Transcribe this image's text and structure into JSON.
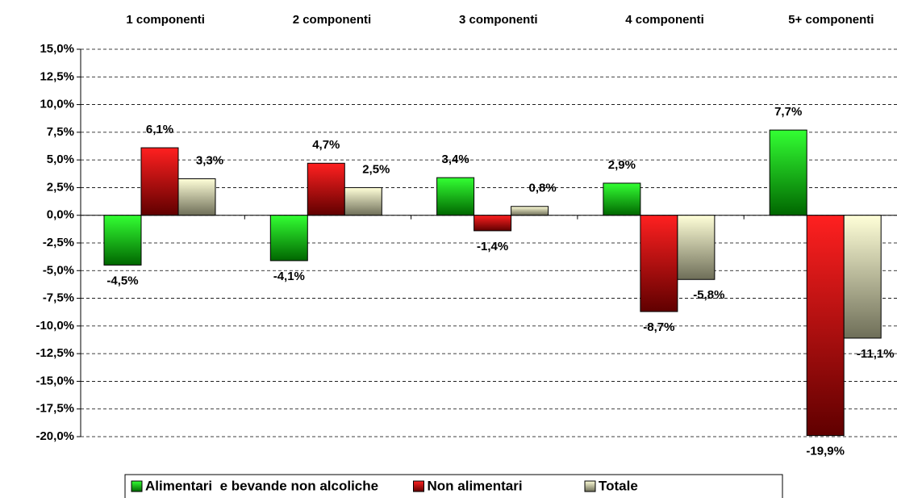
{
  "chart_data": {
    "type": "bar",
    "categories": [
      "1 componenti",
      "2 componenti",
      "3 componenti",
      "4 componenti",
      "5+ componenti"
    ],
    "series": [
      {
        "name": "Alimentari  e bevande non alcoliche",
        "color": "#00b000",
        "values": [
          -4.5,
          -4.1,
          3.4,
          2.9,
          7.7
        ],
        "value_labels": [
          "-4,5%",
          "-4,1%",
          "3,4%",
          "2,9%",
          "7,7%"
        ]
      },
      {
        "name": "Non alimentari",
        "color": "#d00000",
        "values": [
          6.1,
          4.7,
          -1.4,
          -8.7,
          -19.9
        ],
        "value_labels": [
          "6,1%",
          "4,7%",
          "-1,4%",
          "-8,7%",
          "-19,9%"
        ]
      },
      {
        "name": "Totale",
        "color": "#f2efc8",
        "values": [
          3.3,
          2.5,
          0.8,
          -5.8,
          -11.1
        ],
        "value_labels": [
          "3,3%",
          "2,5%",
          "0,8%",
          "-5,8%",
          "-11,1%"
        ]
      }
    ],
    "ylim": [
      -20,
      15
    ],
    "yticks": [
      {
        "value": -20,
        "label": "-20,0%"
      },
      {
        "value": -17.5,
        "label": "-17,5%"
      },
      {
        "value": -15,
        "label": "-15,0%"
      },
      {
        "value": -12.5,
        "label": "-12,5%"
      },
      {
        "value": -10,
        "label": "-10,0%"
      },
      {
        "value": -7.5,
        "label": "-7,5%"
      },
      {
        "value": -5,
        "label": "-5,0%"
      },
      {
        "value": -2.5,
        "label": "-2,5%"
      },
      {
        "value": 0,
        "label": "0,0%"
      },
      {
        "value": 2.5,
        "label": "2,5%"
      },
      {
        "value": 5,
        "label": "5,0%"
      },
      {
        "value": 7.5,
        "label": "7,5%"
      },
      {
        "value": 10,
        "label": "10,0%"
      },
      {
        "value": 12.5,
        "label": "12,5%"
      },
      {
        "value": 15,
        "label": "15,0%"
      }
    ],
    "grid": true,
    "legend": "bottom"
  }
}
